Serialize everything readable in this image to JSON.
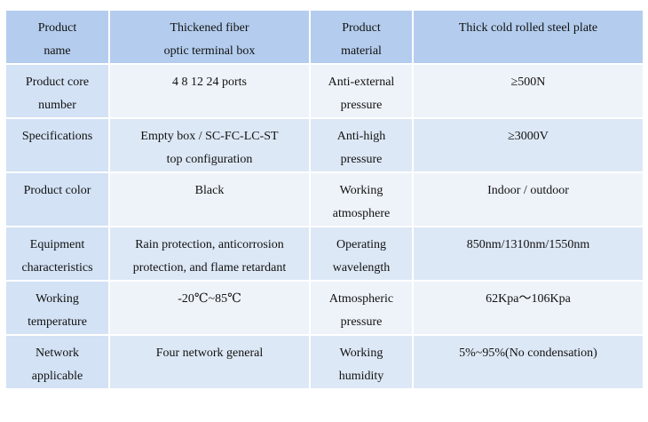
{
  "table": {
    "rows": [
      [
        "Product\nname",
        "Thickened fiber\noptic terminal box",
        "Product\nmaterial",
        "Thick cold rolled steel plate"
      ],
      [
        "Product core\nnumber",
        "4 8 12 24 ports",
        "Anti-external\npressure",
        "≥500N"
      ],
      [
        "Specifications",
        "Empty box / SC-FC-LC-ST\ntop configuration",
        "Anti-high\npressure",
        "≥3000V"
      ],
      [
        "Product color",
        "Black",
        "Working\natmosphere",
        "Indoor / outdoor"
      ],
      [
        "Equipment\ncharacteristics",
        "Rain protection, anticorrosion\nprotection, and flame retardant",
        "Operating\nwavelength",
        "850nm/1310nm/1550nm"
      ],
      [
        "Working\ntemperature",
        "-20℃~85℃",
        "Atmospheric\npressure",
        "62Kpa～106Kpa"
      ],
      [
        "Network\napplicable",
        "Four network general",
        "Working\nhumidity",
        "5%~95%(No condensation)"
      ]
    ]
  }
}
